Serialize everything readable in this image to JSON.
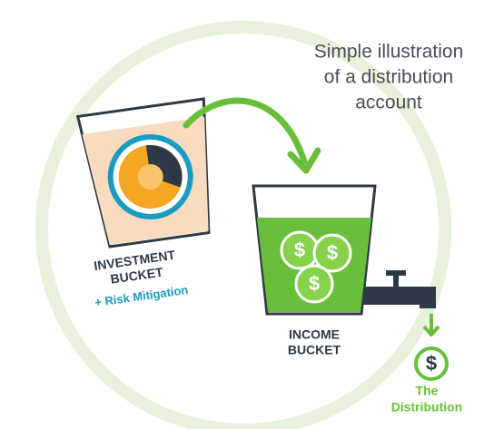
{
  "title": {
    "lines": [
      "Simple illustration",
      "of a distribution",
      "account"
    ]
  },
  "investment_bucket": {
    "label_lines": [
      "INVESTMENT",
      "BUCKET"
    ],
    "note": "+ Risk Mitigation"
  },
  "income_bucket": {
    "label_lines": [
      "INCOME",
      "BUCKET"
    ],
    "coins": [
      "$",
      "$",
      "$"
    ]
  },
  "distribution": {
    "symbol": "$",
    "label_lines": [
      "The",
      "Distribution"
    ]
  }
}
